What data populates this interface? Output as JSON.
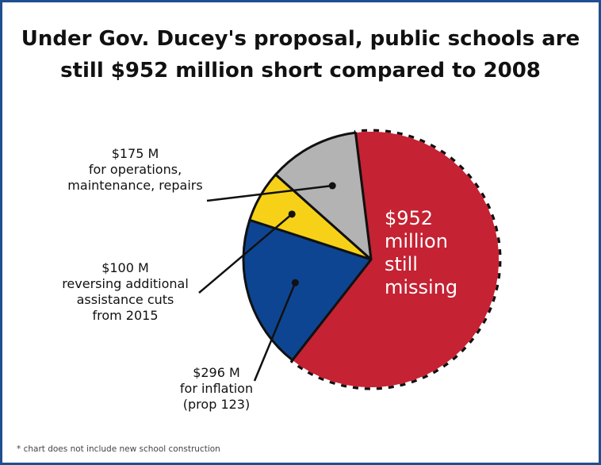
{
  "title": {
    "line1": "Under Gov. Ducey's proposal, public schools are",
    "line2": "still $952 million short compared to 2008"
  },
  "chart_data": {
    "type": "pie",
    "title": "Under Gov. Ducey's proposal, public schools are still $952 million short compared to 2008",
    "slices": [
      {
        "label": "$952 M still missing",
        "value": 952,
        "color": "#c52233"
      },
      {
        "label": "$296 M for inflation (prop 123)",
        "value": 296,
        "color": "#0d4592"
      },
      {
        "label": "$100 M reversing additional assistance cuts from 2015",
        "value": 100,
        "color": "#f7d117"
      },
      {
        "label": "$175 M for operations, maintenance, repairs",
        "value": 175,
        "color": "#b3b3b3"
      }
    ]
  },
  "labels": {
    "missing": [
      "$952",
      "million",
      "still",
      "missing"
    ],
    "operations": [
      "$175 M",
      "for operations,",
      "maintenance, repairs"
    ],
    "additional": [
      "$100 M",
      "reversing additional",
      "assistance cuts",
      "from 2015"
    ],
    "inflation": [
      "$296 M",
      "for inflation",
      "(prop 123)"
    ]
  },
  "footnote": "* chart does not include new school construction"
}
